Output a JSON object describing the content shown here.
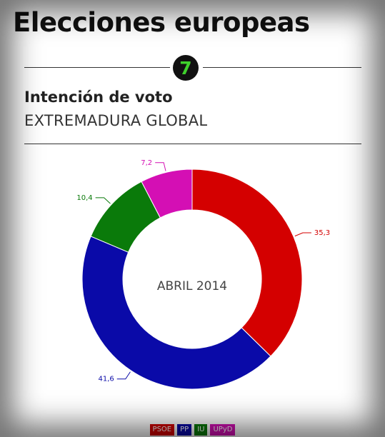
{
  "header": {
    "title": "Elecciones europeas",
    "badge_number": "7",
    "subtitle": "Intención de voto",
    "region": "EXTREMADURA GLOBAL"
  },
  "chart_data": {
    "type": "pie",
    "variant": "donut",
    "center_label": "ABRIL 2014",
    "start_category": "PSOE",
    "direction": "clockwise",
    "categories": [
      "PSOE",
      "PP",
      "IU",
      "UPyD"
    ],
    "values": [
      35.3,
      41.6,
      10.4,
      7.2
    ],
    "value_labels": [
      "35,3",
      "41,6",
      "10,4",
      "7,2"
    ],
    "colors": [
      "#d40000",
      "#0a0aa8",
      "#0a7a0a",
      "#d40fb4"
    ],
    "legend_position": "bottom"
  }
}
